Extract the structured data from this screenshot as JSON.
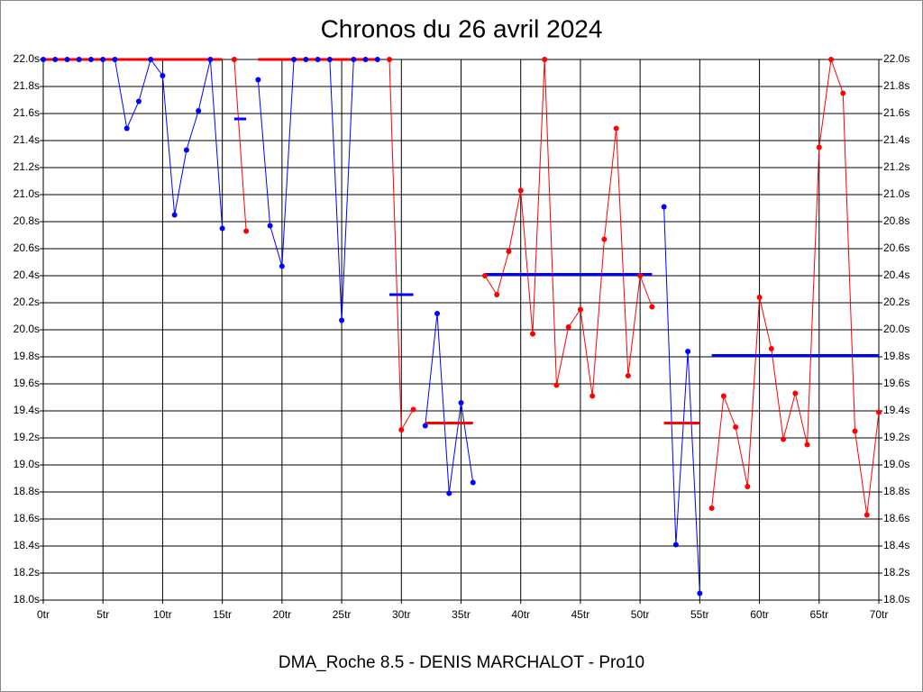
{
  "chart_data": {
    "type": "line",
    "title": "Chronos du 26 avril 2024",
    "subtitle": "DMA_Roche 8.5 - DENIS MARCHALOT - Pro10",
    "xlim": [
      0,
      70
    ],
    "xticks": [
      {
        "value": 0,
        "label": "0tr"
      },
      {
        "value": 5,
        "label": "5tr"
      },
      {
        "value": 10,
        "label": "10tr"
      },
      {
        "value": 15,
        "label": "15tr"
      },
      {
        "value": 20,
        "label": "20tr"
      },
      {
        "value": 25,
        "label": "25tr"
      },
      {
        "value": 30,
        "label": "30tr"
      },
      {
        "value": 35,
        "label": "35tr"
      },
      {
        "value": 40,
        "label": "40tr"
      },
      {
        "value": 45,
        "label": "45tr"
      },
      {
        "value": 50,
        "label": "50tr"
      },
      {
        "value": 55,
        "label": "55tr"
      },
      {
        "value": 60,
        "label": "60tr"
      },
      {
        "value": 65,
        "label": "65tr"
      },
      {
        "value": 70,
        "label": "70tr"
      }
    ],
    "ylim": [
      18.0,
      22.0
    ],
    "yticks": [
      {
        "value": 18.0,
        "label": "18.0s"
      },
      {
        "value": 18.2,
        "label": "18.2s"
      },
      {
        "value": 18.4,
        "label": "18.4s"
      },
      {
        "value": 18.6,
        "label": "18.6s"
      },
      {
        "value": 18.8,
        "label": "18.8s"
      },
      {
        "value": 19.0,
        "label": "19.0s"
      },
      {
        "value": 19.2,
        "label": "19.2s"
      },
      {
        "value": 19.4,
        "label": "19.4s"
      },
      {
        "value": 19.6,
        "label": "19.6s"
      },
      {
        "value": 19.8,
        "label": "19.8s"
      },
      {
        "value": 20.0,
        "label": "20.0s"
      },
      {
        "value": 20.2,
        "label": "20.2s"
      },
      {
        "value": 20.4,
        "label": "20.4s"
      },
      {
        "value": 20.6,
        "label": "20.6s"
      },
      {
        "value": 20.8,
        "label": "20.8s"
      },
      {
        "value": 21.0,
        "label": "21.0s"
      },
      {
        "value": 21.2,
        "label": "21.2s"
      },
      {
        "value": 21.4,
        "label": "21.4s"
      },
      {
        "value": 21.6,
        "label": "21.6s"
      },
      {
        "value": 21.8,
        "label": "21.8s"
      },
      {
        "value": 22.0,
        "label": "22.0s"
      }
    ],
    "grid": true,
    "series": [
      {
        "color": "#0000ff",
        "x": [
          0,
          1,
          2,
          3,
          4,
          5,
          6,
          7,
          8,
          9,
          10,
          11,
          12,
          13,
          14,
          15
        ],
        "values": [
          22.0,
          22.0,
          22.0,
          22.0,
          22.0,
          22.0,
          22.0,
          21.49,
          21.69,
          22.0,
          21.88,
          20.85,
          21.33,
          21.62,
          22.0,
          20.75
        ],
        "average": {
          "value": 22.0,
          "color": "#ff0000"
        }
      },
      {
        "color": "#ff0000",
        "x": [
          16,
          17
        ],
        "values": [
          22.0,
          20.73
        ],
        "average": {
          "value": 21.56,
          "color": "#0000ff"
        }
      },
      {
        "color": "#0000ff",
        "x": [
          18,
          19,
          20,
          21,
          22,
          23,
          24,
          25,
          26,
          27,
          28
        ],
        "values": [
          21.85,
          20.77,
          20.47,
          22.0,
          22.0,
          22.0,
          22.0,
          20.07,
          22.0,
          22.0,
          22.0
        ],
        "average": {
          "value": 22.0,
          "color": "#ff0000"
        }
      },
      {
        "color": "#ff0000",
        "x": [
          29,
          30,
          31
        ],
        "values": [
          22.0,
          19.26,
          19.41
        ],
        "average": {
          "value": 20.26,
          "color": "#0000ff"
        }
      },
      {
        "color": "#0000ff",
        "x": [
          32,
          33,
          34,
          35,
          36
        ],
        "values": [
          19.29,
          20.12,
          18.79,
          19.46,
          18.87
        ],
        "average": {
          "value": 19.31,
          "color": "#ff0000"
        }
      },
      {
        "color": "#ff0000",
        "x": [
          37,
          38,
          39,
          40,
          41,
          42,
          43,
          44,
          45,
          46,
          47,
          48,
          49,
          50,
          51
        ],
        "values": [
          20.4,
          20.26,
          20.58,
          21.03,
          19.97,
          22.0,
          19.59,
          20.02,
          20.15,
          19.51,
          20.67,
          21.49,
          19.66,
          20.4,
          20.17
        ],
        "average": {
          "value": 20.41,
          "color": "#0000ff"
        }
      },
      {
        "color": "#0000ff",
        "x": [
          52,
          53,
          54,
          55
        ],
        "values": [
          20.91,
          18.41,
          19.84,
          18.05
        ],
        "average": {
          "value": 19.31,
          "color": "#ff0000"
        }
      },
      {
        "color": "#ff0000",
        "x": [
          56,
          57,
          58,
          59,
          60,
          61,
          62,
          63,
          64,
          65,
          66,
          67,
          68,
          69,
          70
        ],
        "values": [
          18.68,
          19.51,
          19.28,
          18.84,
          20.24,
          19.86,
          19.19,
          19.53,
          19.15,
          21.35,
          22.0,
          21.75,
          19.25,
          18.63,
          19.39
        ],
        "average": {
          "value": 19.81,
          "color": "#0000ff"
        }
      }
    ]
  }
}
